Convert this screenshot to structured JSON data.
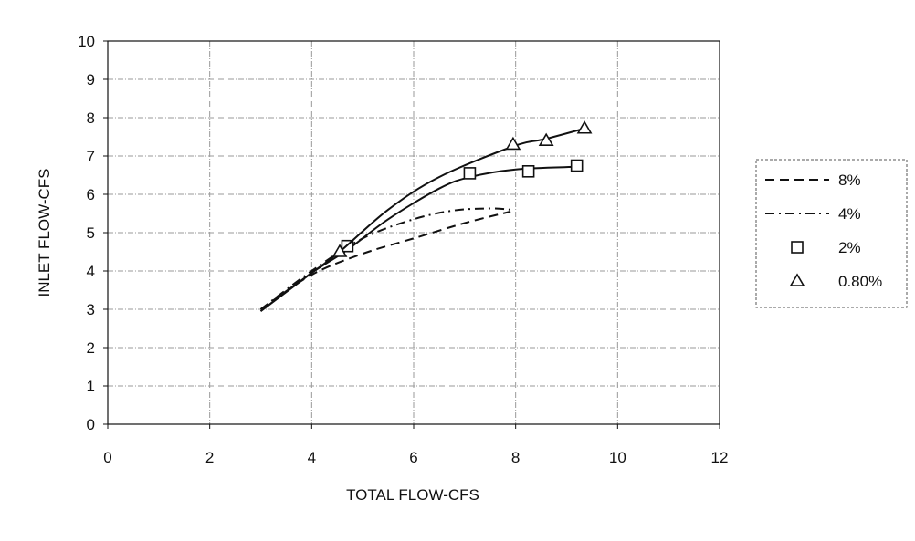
{
  "chart_data": {
    "type": "line",
    "title": "",
    "xlabel": "TOTAL FLOW-CFS",
    "ylabel": "INLET FLOW-CFS",
    "xlim": [
      0,
      12
    ],
    "ylim": [
      0,
      10
    ],
    "x_ticks": [
      "0",
      "2",
      "4",
      "6",
      "8",
      "10",
      "12"
    ],
    "y_ticks": [
      "0",
      "1",
      "2",
      "3",
      "4",
      "5",
      "6",
      "7",
      "8",
      "9",
      "10"
    ],
    "grid": true,
    "legend_position": "right",
    "series": [
      {
        "name": "8%",
        "style": "dashed",
        "color": "#111111",
        "x": [
          3.0,
          4.0,
          5.0,
          6.0,
          7.0,
          7.9
        ],
        "y": [
          3.0,
          3.9,
          4.45,
          4.85,
          5.25,
          5.55
        ]
      },
      {
        "name": "4%",
        "style": "dash-dot",
        "color": "#111111",
        "x": [
          3.0,
          4.0,
          5.0,
          6.0,
          6.8,
          7.5,
          7.9
        ],
        "y": [
          3.0,
          4.0,
          4.85,
          5.35,
          5.58,
          5.63,
          5.6
        ]
      },
      {
        "name": "2%",
        "marker": "square",
        "color": "#111111",
        "points_x": [
          4.7,
          7.1,
          8.25,
          9.2
        ],
        "points_y": [
          4.65,
          6.55,
          6.6,
          6.75
        ],
        "fit_x": [
          3.0,
          4.0,
          4.7,
          5.5,
          6.5,
          7.1,
          8.0,
          9.2
        ],
        "fit_y": [
          2.95,
          3.95,
          4.55,
          5.35,
          6.15,
          6.45,
          6.65,
          6.72
        ]
      },
      {
        "name": "0.80%",
        "marker": "triangle",
        "color": "#111111",
        "points_x": [
          4.55,
          7.95,
          8.6,
          9.35
        ],
        "points_y": [
          4.5,
          7.3,
          7.4,
          7.72
        ],
        "fit_x": [
          3.0,
          4.0,
          4.55,
          5.5,
          6.5,
          7.95,
          8.6,
          9.35
        ],
        "fit_y": [
          2.95,
          3.95,
          4.5,
          5.6,
          6.45,
          7.25,
          7.45,
          7.72
        ]
      }
    ]
  }
}
